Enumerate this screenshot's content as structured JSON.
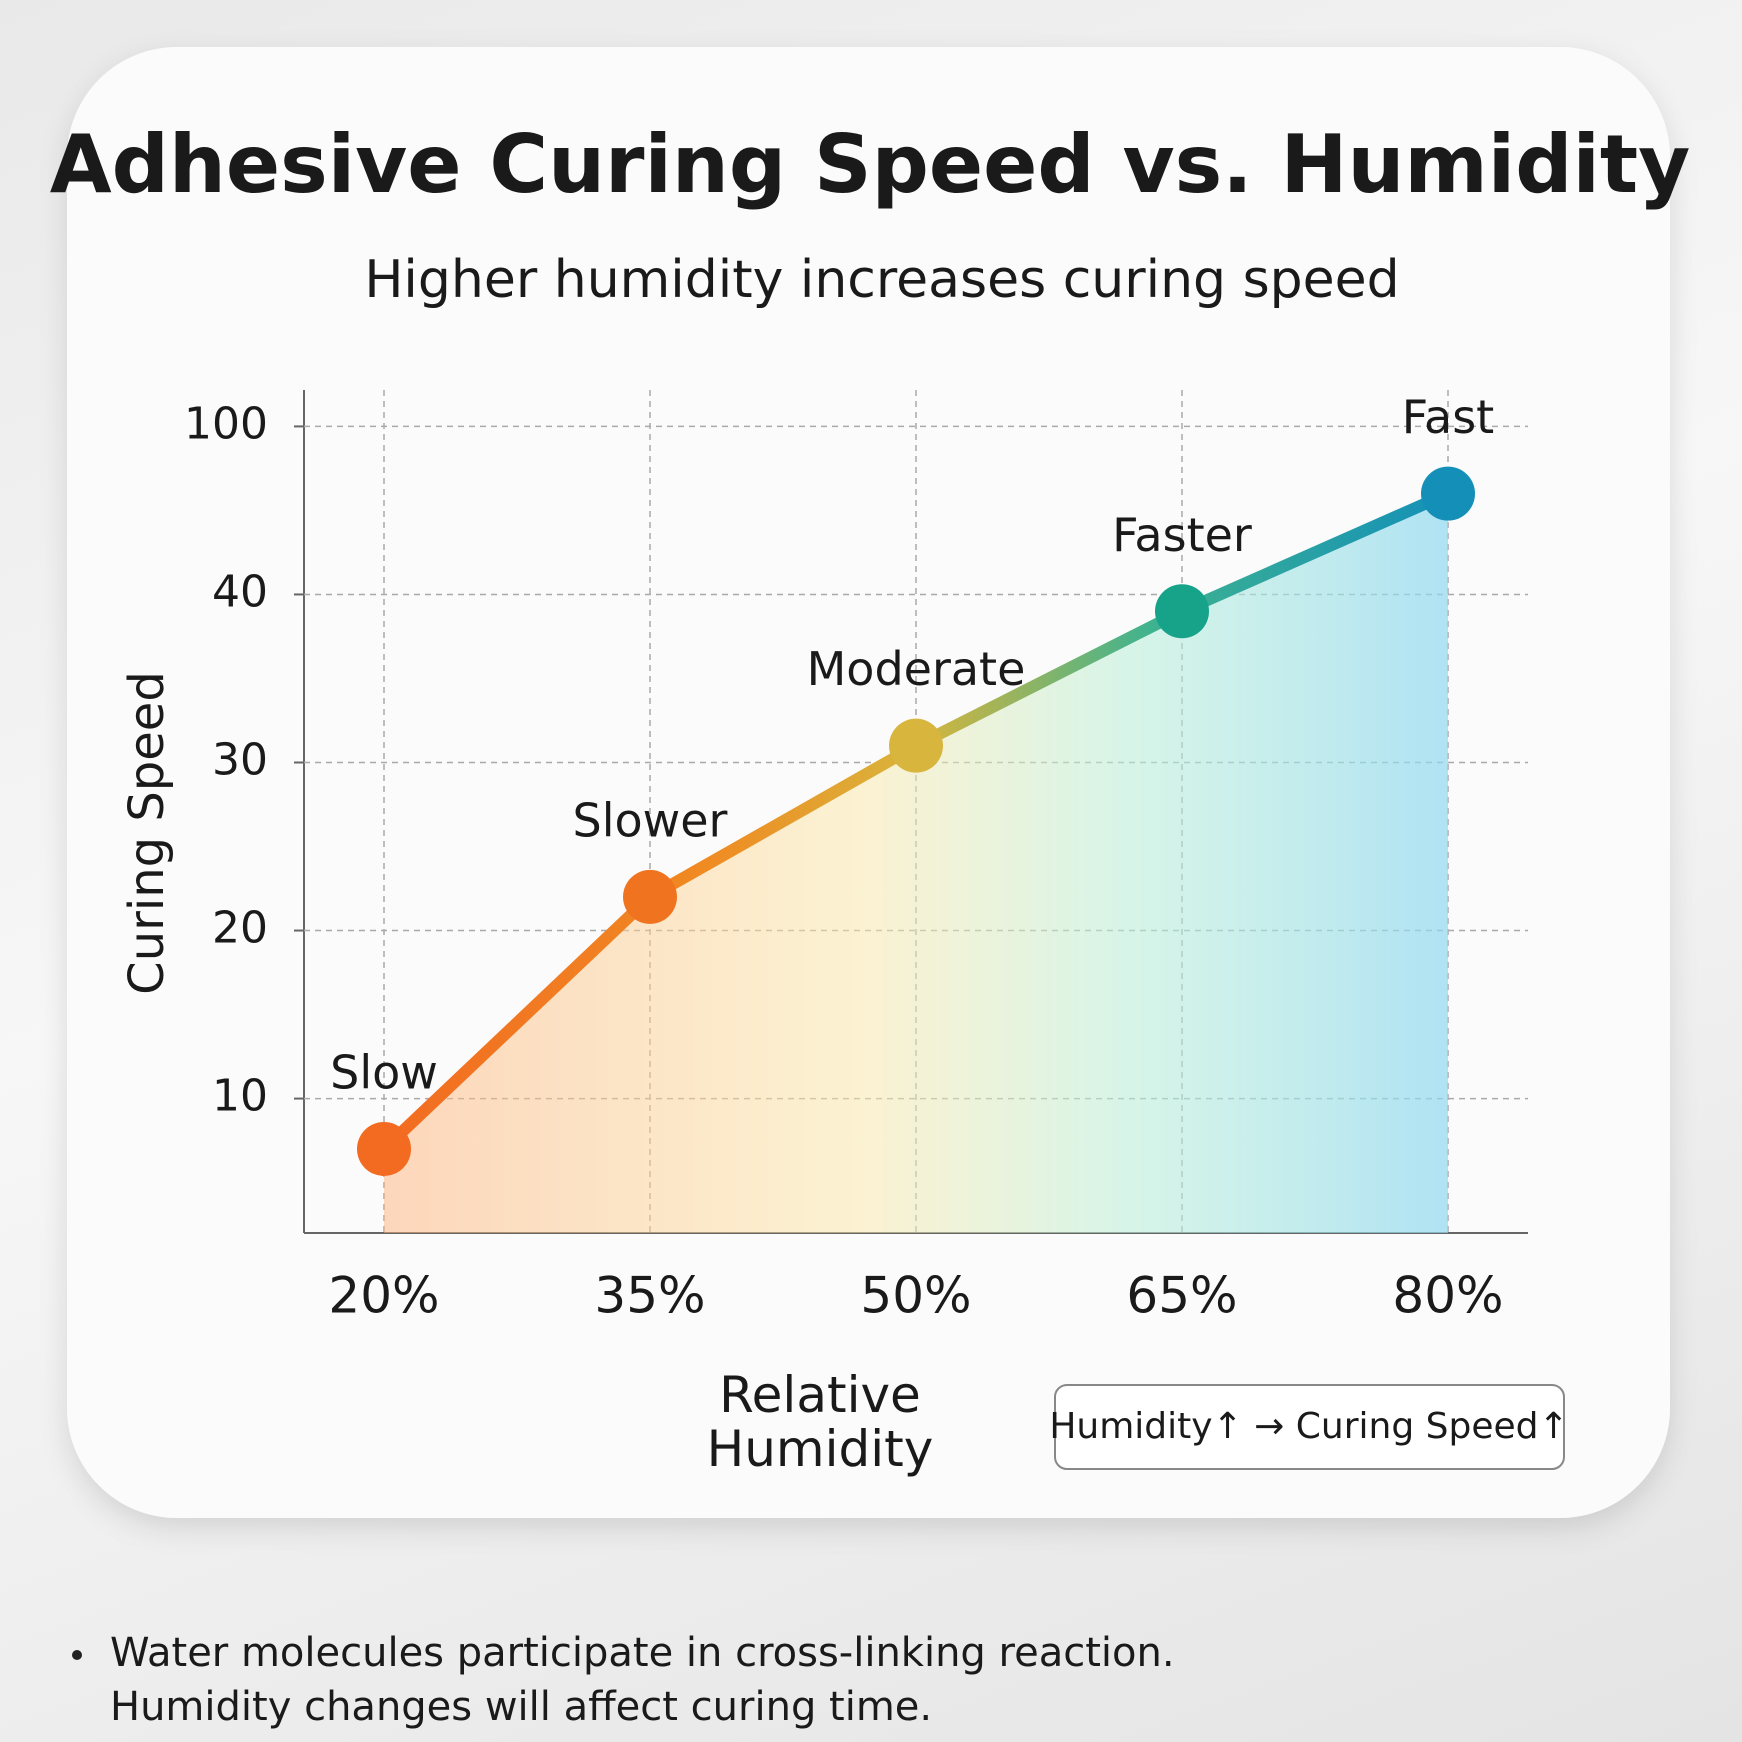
{
  "chart_data": {
    "type": "line",
    "title": "Adhesive Curing Speed vs. Humidity",
    "subtitle": "Higher humidity increases curing speed",
    "y_label": "Curing Speed",
    "x_label": "Relative Humidity",
    "categories": [
      "20%",
      "35%",
      "50%",
      "65%",
      "80%"
    ],
    "values": [
      7,
      22,
      31,
      39,
      76
    ],
    "point_labels": [
      "Slow",
      "Slower",
      "Moderate",
      "Faster",
      "Fast"
    ],
    "colors": [
      "#f26b21",
      "#f0731f",
      "#d8b53c",
      "#17a38a",
      "#1490b8"
    ],
    "ylim": [
      2,
      113
    ],
    "yticks": [
      10,
      20,
      30,
      40,
      100
    ],
    "grid": true,
    "note": "Humidity↑ → Curing Speed↑",
    "footnotes": [
      "Water molecules participate in cross-linking reaction.",
      "Humidity changes will affect curing time."
    ]
  }
}
